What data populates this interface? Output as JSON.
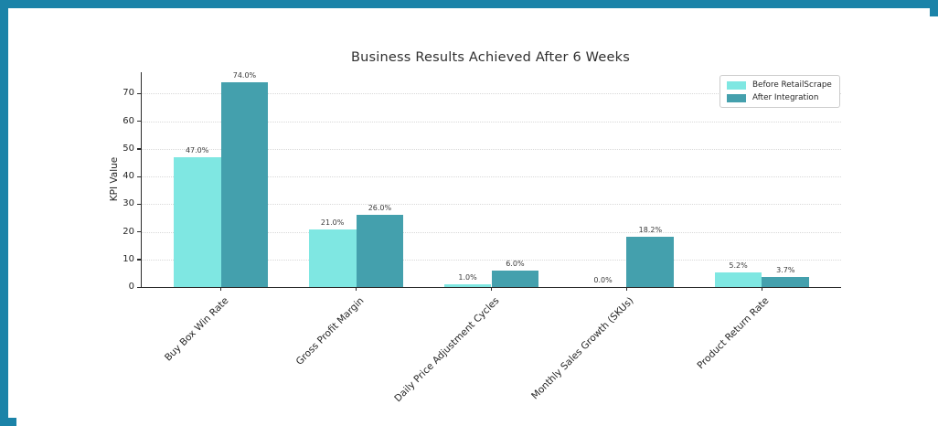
{
  "frame": {
    "border_color": "#1b83a8",
    "background": "#ffffff"
  },
  "chart_data": {
    "type": "bar",
    "title": "Business Results Achieved After 6 Weeks",
    "xlabel": "",
    "ylabel": "KPI Value",
    "categories": [
      "Buy Box Win Rate",
      "Gross Profit Margin",
      "Daily Price Adjustment Cycles",
      "Monthly Sales Growth (SKUs)",
      "Product Return Rate"
    ],
    "series": [
      {
        "name": "Before RetailScrape",
        "color": "#7fe7e2",
        "values": [
          47.0,
          21.0,
          1.0,
          0.0,
          5.2
        ],
        "value_labels": [
          "47.0%",
          "21.0%",
          "1.0%",
          "0.0%",
          "5.2%"
        ]
      },
      {
        "name": "After Integration",
        "color": "#44a0ad",
        "values": [
          74.0,
          26.0,
          6.0,
          18.2,
          3.7
        ],
        "value_labels": [
          "74.0%",
          "26.0%",
          "6.0%",
          "18.2%",
          "3.7%"
        ]
      }
    ],
    "yticks": [
      0,
      10,
      20,
      30,
      40,
      50,
      60,
      70
    ],
    "ylim": [
      0,
      77.7
    ],
    "xlim": [
      -0.585,
      4.585
    ],
    "bar_width": 0.35,
    "grid": "horizontal-dotted",
    "legend_position": "upper-right",
    "spines": [
      "left",
      "bottom"
    ]
  }
}
